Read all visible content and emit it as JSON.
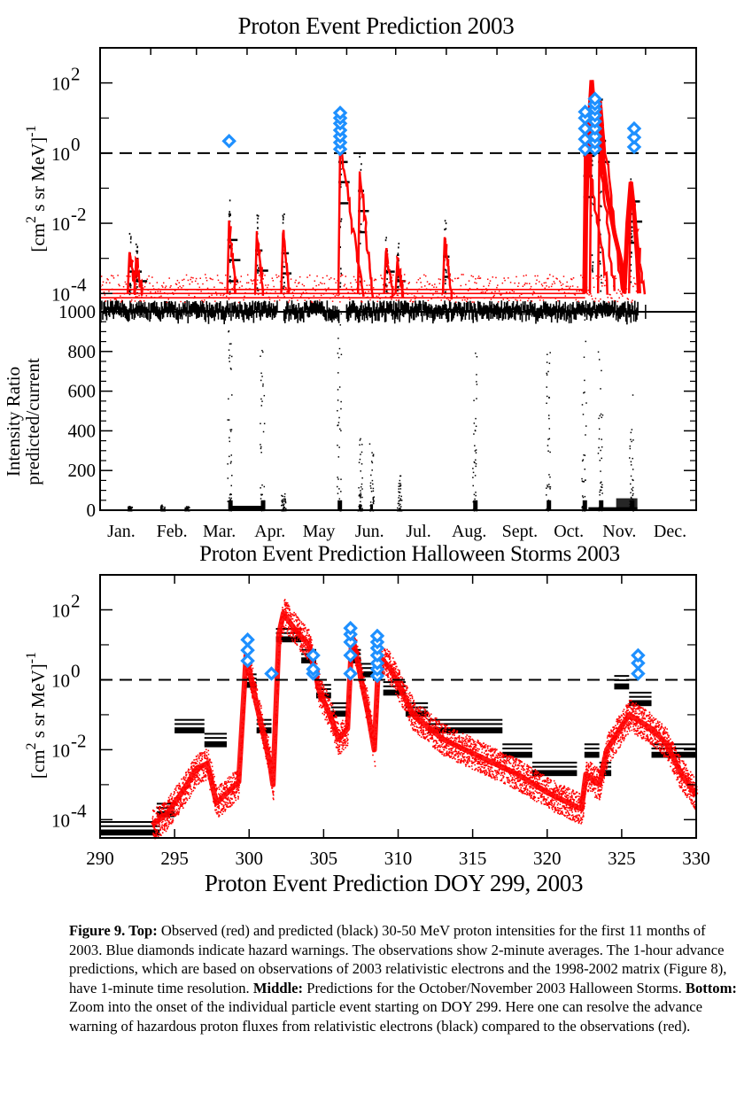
{
  "titles": {
    "top": "Proton Event Prediction 2003",
    "middle": "Proton Event Prediction Halloween Storms 2003",
    "bottom": "Proton Event Prediction DOY 299, 2003"
  },
  "caption": {
    "parts": [
      {
        "bold": true,
        "text": "Figure 9. Top:"
      },
      {
        "bold": false,
        "text": " Observed (red) and predicted (black) 30-50 MeV proton intensities for the first 11 months of 2003. Blue diamonds indicate hazard warnings. The observations show 2-minute averages. The 1-hour advance predictions, which are based on observations of 2003 relativistic electrons and the 1998-2002 matrix (Figure 8), have 1-minute time resolution. "
      },
      {
        "bold": true,
        "text": "Middle:"
      },
      {
        "bold": false,
        "text": " Predictions for the October/November 2003 Halloween Storms. "
      },
      {
        "bold": true,
        "text": "Bottom:"
      },
      {
        "bold": false,
        "text": " Zoom into the onset of the individual particle event starting on DOY 299. Here one can resolve the advance warning of hazardous proton fluxes from relativistic electrons (black) compared to the observations (red)."
      }
    ]
  },
  "colors": {
    "observed": "#ff0000",
    "predicted": "#000000",
    "warning": "#1e90ff",
    "threshold": "#000000"
  },
  "chart_data": [
    {
      "id": "annual-intensity",
      "type": "scatter",
      "title": "Proton Event Prediction 2003",
      "ylabel": "[cm^2 s sr MeV]^-1",
      "ylabel_main": "[cm",
      "ylabel_sup1": "2",
      "ylabel_mid": " s sr MeV]",
      "ylabel_sup2": "-1",
      "yscale": "log",
      "ylim": [
        3e-05,
        1000
      ],
      "ytick_exponents": [
        -4,
        -2,
        0,
        2
      ],
      "ytick_labels": [
        "10",
        "10",
        "10",
        "10"
      ],
      "ytick_sup": [
        "-4",
        "-2",
        "0",
        "2"
      ],
      "xlim": [
        1,
        366
      ],
      "threshold": 1,
      "series": [
        {
          "name": "Observed (red)",
          "color": "#ff0000",
          "baseline": 0.0001,
          "events": [
            {
              "doy": 19,
              "peak": 0.0015
            },
            {
              "doy": 23,
              "peak": 0.0008
            },
            {
              "doy": 80,
              "peak": 0.012
            },
            {
              "doy": 97,
              "peak": 0.006
            },
            {
              "doy": 113,
              "peak": 0.005
            },
            {
              "doy": 148,
              "peak": 2.0
            },
            {
              "doy": 160,
              "peak": 0.3
            },
            {
              "doy": 176,
              "peak": 0.0015
            },
            {
              "doy": 183,
              "peak": 0.0008
            },
            {
              "doy": 212,
              "peak": 0.004
            },
            {
              "doy": 298,
              "peak": 3.0
            },
            {
              "doy": 302,
              "peak": 120
            },
            {
              "doy": 307,
              "peak": 30
            },
            {
              "doy": 326,
              "peak": 0.15
            }
          ]
        },
        {
          "name": "Predicted (black)",
          "color": "#000000",
          "baseline": 4e-05
        },
        {
          "name": "Hazard warnings (blue diamonds)",
          "color": "#1e90ff",
          "warnings": [
            {
              "doy": 80,
              "values": [
                2.2
              ]
            },
            {
              "doy": 148,
              "values": [
                1.3,
                2,
                3,
                4.5,
                7,
                10,
                14
              ]
            },
            {
              "doy": 298,
              "values": [
                1.3,
                2.5,
                5,
                10,
                15
              ]
            },
            {
              "doy": 304,
              "values": [
                1.3,
                2,
                3,
                5,
                8,
                12,
                18,
                25,
                35
              ]
            },
            {
              "doy": 328,
              "values": [
                1.5,
                2.8,
                5
              ]
            }
          ]
        }
      ],
      "x_labels": [
        "Jan.",
        "Feb.",
        "Mar.",
        "Apr.",
        "May",
        "Jun.",
        "Jul.",
        "Aug.",
        "Sept.",
        "Oct.",
        "Nov.",
        "Dec."
      ]
    },
    {
      "id": "intensity-ratio",
      "type": "scatter",
      "ylabel_line1": "Intensity Ratio",
      "ylabel_line2": "predicted/current",
      "ylim": [
        0,
        1000
      ],
      "yticks": [
        0,
        200,
        400,
        600,
        800,
        1000
      ],
      "ytick_labels": [
        "0",
        "200",
        "400",
        "600",
        "800",
        "1000"
      ],
      "xlim": [
        1,
        366
      ],
      "x_labels": [
        "Jan.",
        "Feb.",
        "Mar.",
        "Apr.",
        "May",
        "Jun.",
        "Jul.",
        "Aug.",
        "Sept.",
        "Oct.",
        "Nov.",
        "Dec."
      ],
      "series": [
        {
          "name": "predicted/current ratio",
          "color": "#000000",
          "spikes": [
            {
              "doy": 19,
              "max": 25
            },
            {
              "doy": 39,
              "max": 30
            },
            {
              "doy": 54,
              "max": 22
            },
            {
              "doy": 80,
              "max": 950
            },
            {
              "doy": 100,
              "max": 880
            },
            {
              "doy": 113,
              "max": 90
            },
            {
              "doy": 147,
              "max": 1000
            },
            {
              "doy": 160,
              "max": 380
            },
            {
              "doy": 167,
              "max": 350
            },
            {
              "doy": 184,
              "max": 180
            },
            {
              "doy": 230,
              "max": 810
            },
            {
              "doy": 275,
              "max": 800
            },
            {
              "doy": 297,
              "max": 1000
            },
            {
              "doy": 307,
              "max": 830
            },
            {
              "doy": 326,
              "max": 600
            }
          ]
        }
      ]
    },
    {
      "id": "halloween-intensity",
      "type": "scatter",
      "title": "Proton Event Prediction Halloween Storms 2003",
      "xlabel": "Proton Event Prediction DOY 299, 2003",
      "ylabel_main": "[cm",
      "ylabel_sup1": "2",
      "ylabel_mid": " s sr MeV]",
      "ylabel_sup2": "-1",
      "yscale": "log",
      "ylim": [
        3e-05,
        1000
      ],
      "ytick_exponents": [
        -4,
        -2,
        0,
        2
      ],
      "ytick_labels": [
        "10",
        "10",
        "10",
        "10"
      ],
      "ytick_sup": [
        "-4",
        "-2",
        "0",
        "2"
      ],
      "xlim": [
        290,
        330
      ],
      "xticks": [
        290,
        295,
        300,
        305,
        310,
        315,
        320,
        325,
        330
      ],
      "xtick_labels": [
        "290",
        "295",
        "300",
        "305",
        "310",
        "315",
        "320",
        "325",
        "330"
      ],
      "threshold": 1,
      "series": [
        {
          "name": "Observed (red)",
          "color": "#ff0000",
          "points": [
            [
              293.5,
              7e-05
            ],
            [
              294.5,
              0.00015
            ],
            [
              295.5,
              0.0006
            ],
            [
              296.5,
              0.003
            ],
            [
              297.2,
              0.004
            ],
            [
              297.8,
              0.0003
            ],
            [
              299.3,
              0.0012
            ],
            [
              299.8,
              5
            ],
            [
              300.5,
              0.2
            ],
            [
              301.4,
              0.004
            ],
            [
              301.6,
              0.001
            ],
            [
              302,
              20
            ],
            [
              302.3,
              80
            ],
            [
              303,
              30
            ],
            [
              304,
              10
            ],
            [
              304.7,
              0.5
            ],
            [
              305.5,
              0.08
            ],
            [
              306,
              0.02
            ],
            [
              306.6,
              0.04
            ],
            [
              306.9,
              20
            ],
            [
              308,
              0.1
            ],
            [
              308.4,
              0.01
            ],
            [
              308.7,
              5
            ],
            [
              309.5,
              2
            ],
            [
              311,
              0.1
            ],
            [
              313,
              0.02
            ],
            [
              316,
              0.005
            ],
            [
              318,
              0.002
            ],
            [
              320,
              0.0006
            ],
            [
              322.3,
              0.0002
            ],
            [
              322.6,
              0.002
            ],
            [
              323.5,
              0.001
            ],
            [
              324,
              0.01
            ],
            [
              325.5,
              0.1
            ],
            [
              327,
              0.04
            ],
            [
              328,
              0.015
            ],
            [
              329,
              0.002
            ],
            [
              330,
              0.0005
            ]
          ]
        },
        {
          "name": "Predicted (black)",
          "color": "#000000",
          "steps": [
            [
              290,
              294,
              6e-05
            ],
            [
              293.8,
              295,
              0.0002
            ],
            [
              295,
              297,
              0.05
            ],
            [
              297,
              298.5,
              0.02
            ],
            [
              299.8,
              300.5,
              1.0
            ],
            [
              300.5,
              301.5,
              0.05
            ],
            [
              301.8,
              303.5,
              20
            ],
            [
              303.5,
              304.5,
              5
            ],
            [
              304.5,
              305.5,
              0.5
            ],
            [
              305.5,
              306.6,
              0.15
            ],
            [
              306.7,
              307.5,
              5
            ],
            [
              307.5,
              309,
              2
            ],
            [
              309,
              310.5,
              0.6
            ],
            [
              310.5,
              312,
              0.15
            ],
            [
              312,
              317,
              0.05
            ],
            [
              317,
              319,
              0.01
            ],
            [
              319,
              322,
              0.003
            ],
            [
              322.5,
              323.5,
              0.01
            ],
            [
              323.5,
              324.3,
              0.003
            ],
            [
              324.5,
              325.5,
              0.9
            ],
            [
              325.5,
              327,
              0.3
            ],
            [
              327,
              330,
              0.01
            ]
          ]
        },
        {
          "name": "Hazard warnings (blue diamonds)",
          "color": "#1e90ff",
          "warnings": [
            {
              "doy": 299.9,
              "values": [
                3.5,
                7,
                14
              ]
            },
            {
              "doy": 301.5,
              "values": [
                1.5
              ]
            },
            {
              "doy": 304.3,
              "values": [
                1.5,
                2,
                5
              ]
            },
            {
              "doy": 306.8,
              "values": [
                1.5,
                5,
                12,
                20,
                30
              ]
            },
            {
              "doy": 308.6,
              "values": [
                1.3,
                2,
                3,
                5,
                8,
                12,
                18
              ]
            },
            {
              "doy": 326.1,
              "values": [
                1.5,
                3,
                5
              ]
            }
          ]
        }
      ]
    }
  ]
}
